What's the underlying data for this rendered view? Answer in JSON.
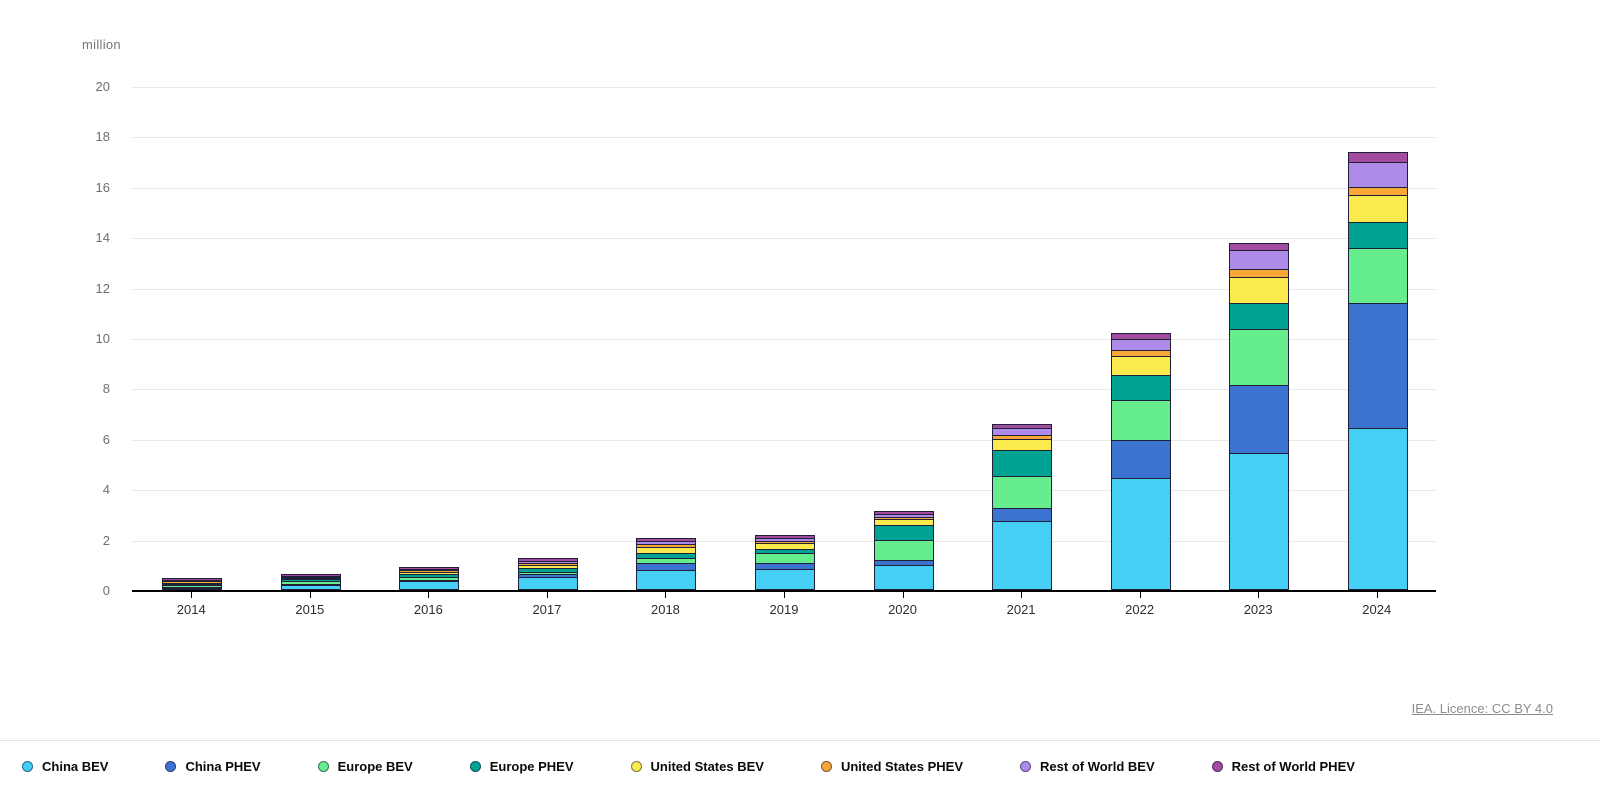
{
  "chart_data": {
    "type": "bar",
    "stacked": true,
    "ylabel": "million",
    "ylim": [
      0,
      20
    ],
    "ytick_step": 2,
    "grid": "horizontal",
    "legend_position": "bottom",
    "categories": [
      "2014",
      "2015",
      "2016",
      "2017",
      "2018",
      "2019",
      "2020",
      "2021",
      "2022",
      "2023",
      "2024"
    ],
    "series": [
      {
        "name": "China BEV",
        "color": "#45CFF5",
        "values": [
          0.04,
          0.15,
          0.3,
          0.47,
          0.77,
          0.8,
          0.95,
          2.7,
          4.4,
          5.4,
          6.4
        ]
      },
      {
        "name": "China PHEV",
        "color": "#3D73D0",
        "values": [
          0.02,
          0.06,
          0.07,
          0.11,
          0.27,
          0.25,
          0.2,
          0.5,
          1.5,
          2.7,
          4.95
        ]
      },
      {
        "name": "Europe BEV",
        "color": "#66EE8E",
        "values": [
          0.06,
          0.1,
          0.1,
          0.11,
          0.2,
          0.36,
          0.8,
          1.3,
          1.6,
          2.2,
          2.2
        ]
      },
      {
        "name": "Europe PHEV",
        "color": "#00A294",
        "values": [
          0.04,
          0.08,
          0.11,
          0.16,
          0.18,
          0.18,
          0.6,
          1.0,
          1.0,
          1.05,
          1.0
        ]
      },
      {
        "name": "United States BEV",
        "color": "#FBEA4D",
        "values": [
          0.06,
          0.06,
          0.09,
          0.1,
          0.24,
          0.24,
          0.23,
          0.45,
          0.75,
          1.05,
          1.1
        ]
      },
      {
        "name": "United States PHEV",
        "color": "#F7A737",
        "values": [
          0.06,
          0.04,
          0.07,
          0.09,
          0.12,
          0.09,
          0.07,
          0.18,
          0.25,
          0.3,
          0.3
        ]
      },
      {
        "name": "Rest of World BEV",
        "color": "#AE8BE8",
        "values": [
          0.03,
          0.04,
          0.04,
          0.07,
          0.12,
          0.12,
          0.12,
          0.25,
          0.42,
          0.75,
          1.0
        ]
      },
      {
        "name": "Rest of World PHEV",
        "color": "#A14C9E",
        "values": [
          0.02,
          0.02,
          0.03,
          0.07,
          0.08,
          0.08,
          0.08,
          0.12,
          0.18,
          0.25,
          0.35
        ]
      }
    ],
    "segment_border_color": "#1f1f38",
    "gridline_color": "#e8e8e8"
  },
  "source": {
    "label": "IEA. Licence: CC BY 4.0"
  }
}
